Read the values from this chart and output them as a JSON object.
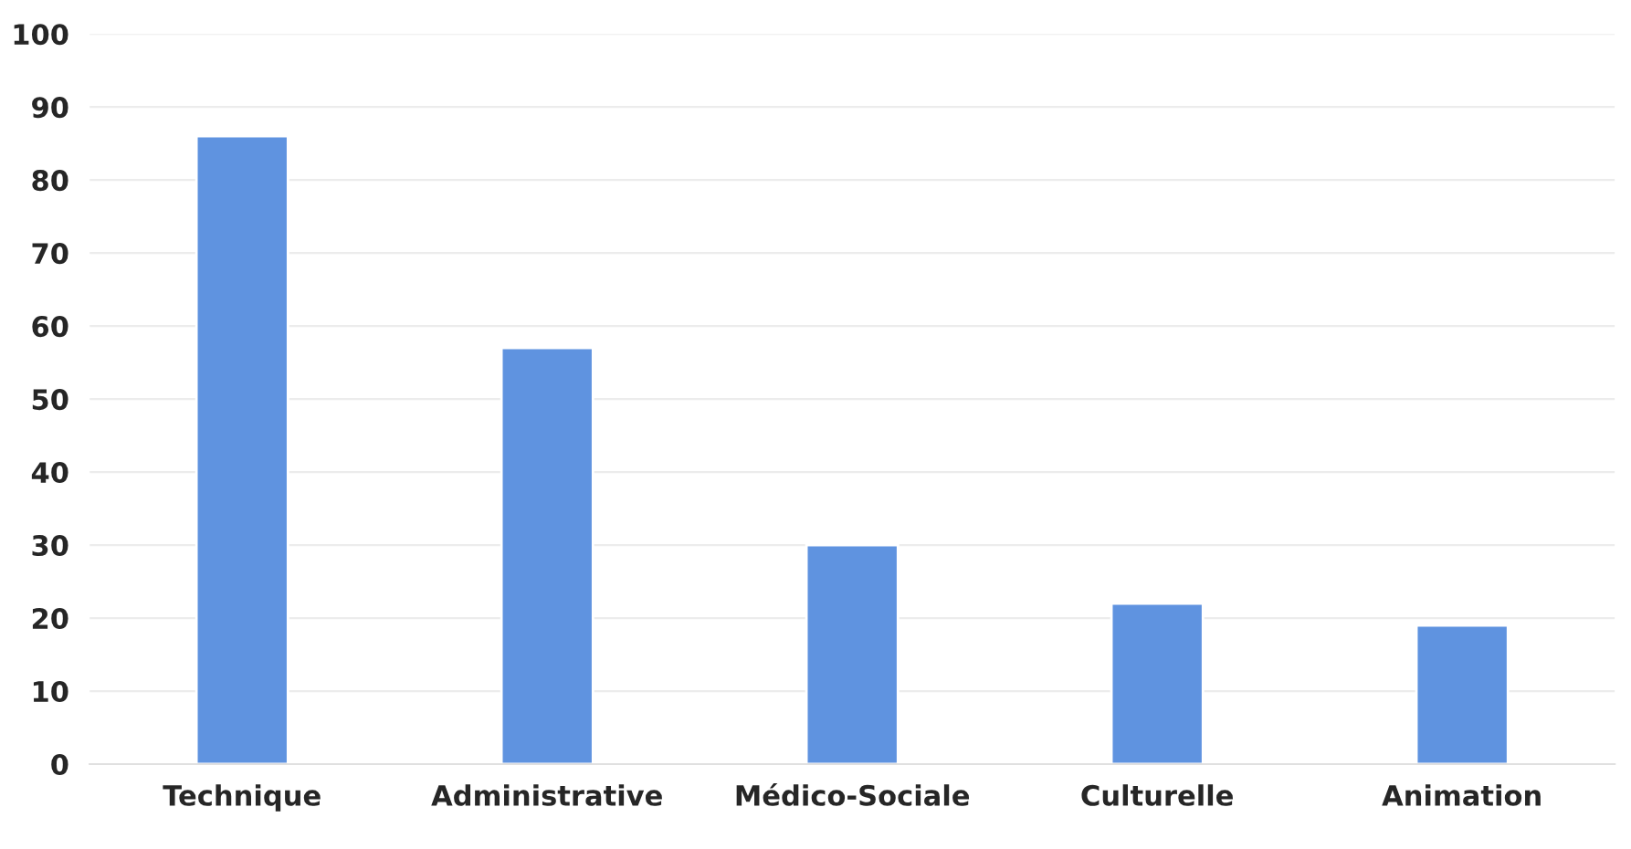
{
  "chart_data": {
    "type": "bar",
    "categories": [
      "Technique",
      "Administrative",
      "Médico-Sociale",
      "Culturelle",
      "Animation"
    ],
    "values": [
      86,
      57,
      30,
      22,
      19
    ],
    "color": "#5f93e0",
    "ylim": [
      0,
      100
    ],
    "yticks": [
      0,
      10,
      20,
      30,
      40,
      50,
      60,
      70,
      80,
      90,
      100
    ],
    "grid": "y"
  }
}
